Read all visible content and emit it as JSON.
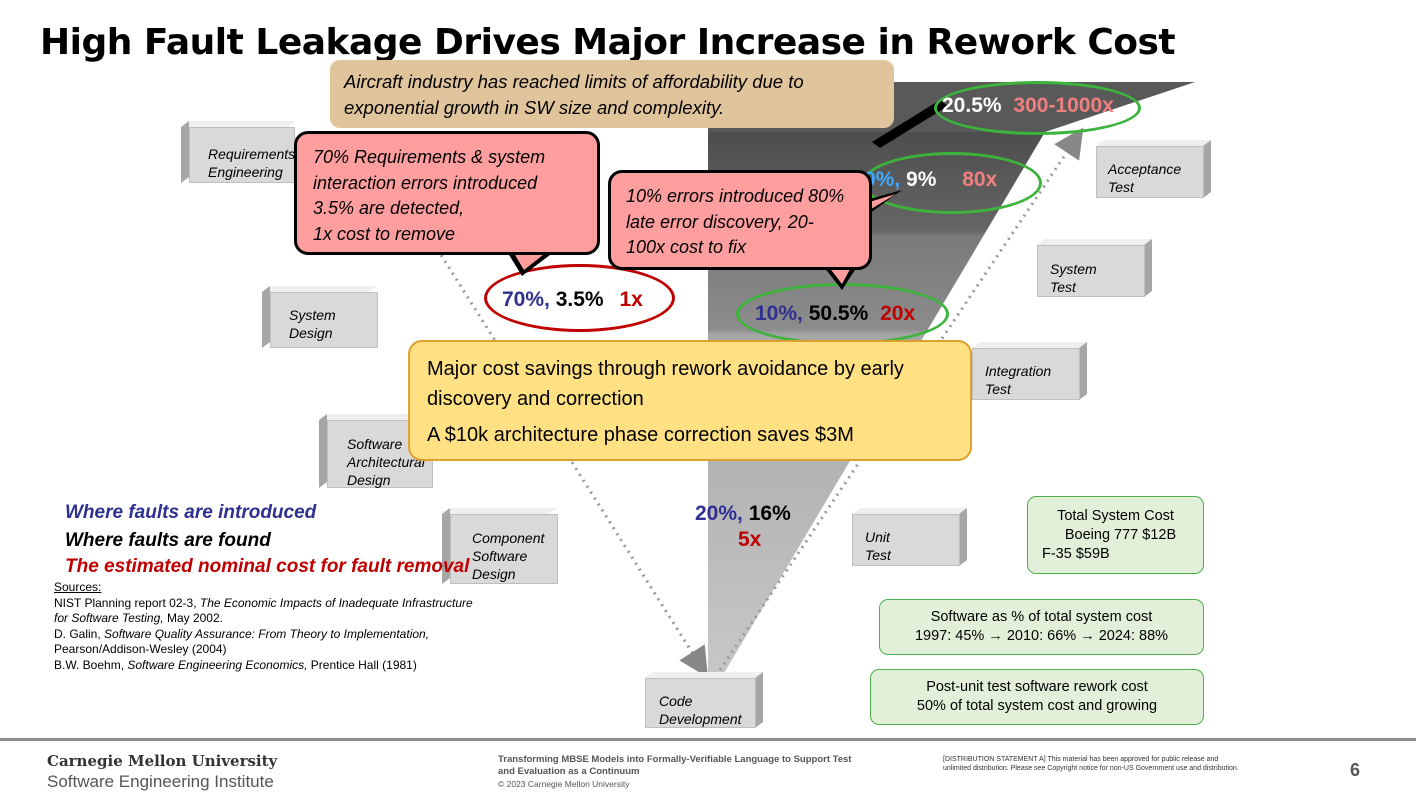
{
  "title": "High Fault Leakage Drives Major Increase in Rework Cost",
  "callouts": {
    "top": [
      "Aircraft industry has reached limits of affordability due to",
      "exponential growth in SW size and complexity."
    ],
    "requirements": [
      "70% Requirements & system",
      "interaction errors introduced",
      "3.5%  are detected,",
      "1x cost to remove"
    ],
    "late_errors": [
      "10% errors introduced 80%",
      "late error discovery, 20-",
      "100x cost to fix"
    ],
    "savings_line1": "Major cost savings through rework avoidance by early",
    "savings_line2": "discovery and correction",
    "savings_line3": "A $10k architecture phase correction saves $3M"
  },
  "phases": {
    "requirements": [
      "Requirements",
      "Engineering"
    ],
    "system_design": [
      "System",
      "Design"
    ],
    "software_architecture": [
      "Software",
      "Architectural",
      "Design"
    ],
    "component_design": [
      "Component",
      "Software",
      "Design"
    ],
    "code_development": [
      "Code",
      "Development"
    ],
    "unit_test": [
      "Unit",
      "Test"
    ],
    "integration_test": [
      "Integration",
      "Test"
    ],
    "system_test": [
      "System",
      "Test"
    ],
    "acceptance_test": [
      "Acceptance",
      "Test"
    ]
  },
  "metrics": {
    "req": {
      "introduced": "70%,",
      "found": "3.5%",
      "cost": "1x"
    },
    "arch": {
      "introduced": "10%,",
      "found": "50.5%",
      "cost": "20x"
    },
    "code": {
      "introduced": "20%,",
      "found": "16%",
      "cost": "5x"
    },
    "system_test": {
      "introduced": "0%,",
      "found": "9%",
      "cost": "80x"
    },
    "acceptance": {
      "found": "20.5%",
      "cost": "300-1000x"
    }
  },
  "legend": {
    "introduced": "Where faults are introduced",
    "found": "Where faults are found",
    "cost": "The estimated nominal cost for fault removal"
  },
  "sources": {
    "heading": "Sources:",
    "s1_a": "NIST Planning report 02-3, ",
    "s1_b": "The Economic Impacts of Inadequate Infrastructure",
    "s1_c": "for Software Testing,",
    "s1_d": " May 2002.",
    "s2_a": "D. Galin, ",
    "s2_b": "Software Quality Assurance: From Theory to Implementation,",
    "s2_c": "Pearson/Addison-Wesley (2004)",
    "s3_a": "B.W. Boehm, ",
    "s3_b": "Software Engineering Economics,",
    "s3_c": " Prentice Hall (1981)"
  },
  "green_boxes": {
    "total": [
      "Total System Cost",
      "Boeing 777 $12B",
      "F-35 $59B"
    ],
    "software_pct": [
      "Software as % of total system cost",
      "1997: 45% → 2010: 66% → 2024: 88%"
    ],
    "rework": [
      "Post-unit test software rework cost",
      "50% of total system cost and growing"
    ]
  },
  "footer": {
    "org1": "Carnegie Mellon University",
    "org2": "Software Engineering Institute",
    "talk1": "Transforming MBSE Models into Formally-Verifiable Language to Support Test",
    "talk2": "and Evaluation as a Continuum",
    "copyright": "© 2023 Carnegie Mellon University",
    "dist1": "[DISTRIBUTION STATEMENT A] This material has been approved for public release and",
    "dist2": "unlimited distribution.  Please see Copyright notice for non-US Government use and distribution.",
    "page": "6"
  },
  "colors": {
    "introduced": "#2e3192",
    "found": "#000000",
    "cost": "#c00000",
    "cost_light": "#f08080",
    "callout_red": "#ff9e9e",
    "callout_tan": "#e0c49c",
    "callout_yellow": "#ffe083",
    "ellipse_green": "#3cb43c",
    "ellipse_red": "#c00000"
  }
}
